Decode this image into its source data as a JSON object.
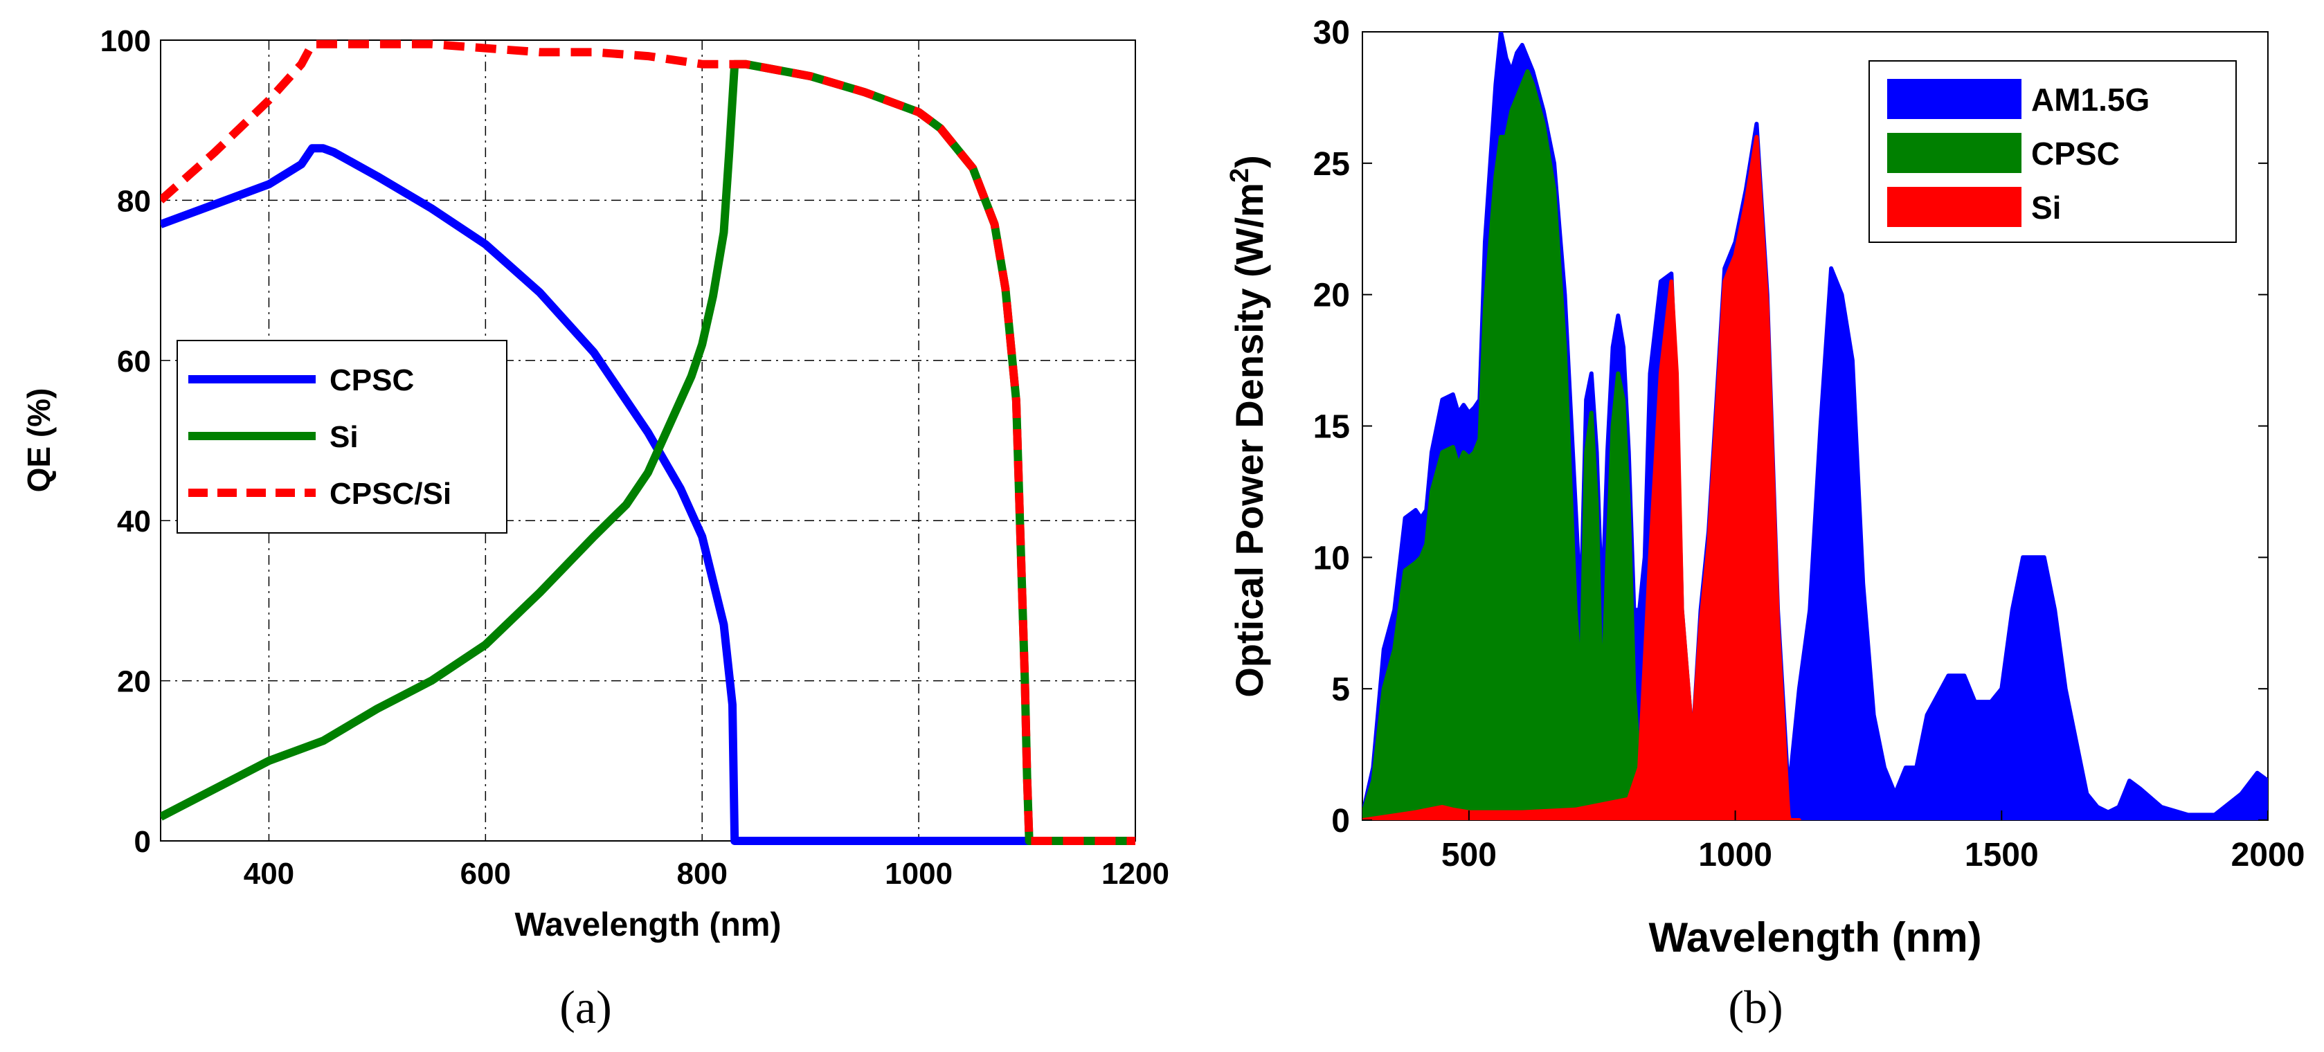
{
  "chart_data": [
    {
      "type": "line",
      "caption": "(a)",
      "xlabel": "Wavelength (nm)",
      "ylabel": "QE (%)",
      "xlim": [
        300,
        1200
      ],
      "ylim": [
        0,
        100
      ],
      "xticks": [
        400,
        600,
        800,
        1000,
        1200
      ],
      "yticks": [
        0,
        20,
        40,
        60,
        80,
        100
      ],
      "grid": true,
      "legend_position": "center-left",
      "series": [
        {
          "name": "CPSC",
          "color": "#0000ff",
          "style": "solid",
          "x": [
            300,
            350,
            400,
            430,
            440,
            450,
            460,
            500,
            550,
            600,
            650,
            700,
            750,
            780,
            800,
            820,
            828,
            830,
            1200
          ],
          "values": [
            77,
            79.5,
            82,
            84.5,
            86.5,
            86.5,
            86,
            83,
            79,
            74.5,
            68.5,
            61,
            51,
            44,
            38,
            27,
            17,
            0,
            0
          ]
        },
        {
          "name": "Si",
          "color": "#008000",
          "style": "solid",
          "x": [
            300,
            350,
            400,
            450,
            500,
            550,
            600,
            650,
            700,
            730,
            750,
            770,
            790,
            800,
            810,
            820,
            825,
            830,
            840,
            900,
            950,
            1000,
            1020,
            1050,
            1070,
            1080,
            1090,
            1098,
            1100,
            1102,
            1110,
            1200
          ],
          "values": [
            3,
            6.5,
            10,
            12.5,
            16.5,
            20,
            24.5,
            31,
            38,
            42,
            46,
            52,
            58,
            62,
            68,
            76,
            86,
            97,
            97,
            95.5,
            93.5,
            91,
            89,
            84,
            77,
            69,
            55,
            20,
            8,
            0,
            0,
            0
          ]
        },
        {
          "name": "CPSC/Si",
          "color": "#ff0000",
          "style": "dashed",
          "x": [
            300,
            350,
            400,
            430,
            440,
            450,
            500,
            550,
            600,
            650,
            700,
            750,
            800,
            840,
            900,
            950,
            1000,
            1020,
            1050,
            1070,
            1080,
            1090,
            1098,
            1100,
            1102,
            1110,
            1200
          ],
          "values": [
            80,
            86,
            92.5,
            97,
            99.5,
            99.5,
            99.5,
            99.5,
            99,
            98.5,
            98.5,
            98,
            97,
            97,
            95.5,
            93.5,
            91,
            89,
            84,
            77,
            69,
            55,
            20,
            8,
            0,
            0,
            0
          ]
        }
      ]
    },
    {
      "type": "area",
      "caption": "(b)",
      "xlabel": "Wavelength (nm)",
      "ylabel_main": "Optical Power Density (W/m",
      "ylabel_sup": "2",
      "ylabel_end": ")",
      "xlim": [
        300,
        2000
      ],
      "ylim": [
        0,
        30
      ],
      "xticks": [
        500,
        1000,
        1500,
        2000
      ],
      "yticks": [
        0,
        5,
        10,
        15,
        20,
        25,
        30
      ],
      "grid": false,
      "legend_position": "top-right",
      "series": [
        {
          "name": "AM1.5G",
          "color": "#0000ff",
          "x": [
            300,
            320,
            340,
            360,
            380,
            400,
            410,
            420,
            430,
            450,
            470,
            480,
            490,
            500,
            510,
            520,
            530,
            540,
            550,
            560,
            570,
            580,
            590,
            600,
            610,
            620,
            640,
            660,
            680,
            700,
            710,
            720,
            730,
            740,
            750,
            760,
            770,
            780,
            790,
            800,
            810,
            820,
            830,
            840,
            860,
            880,
            890,
            900,
            920,
            935,
            950,
            980,
            1000,
            1020,
            1040,
            1060,
            1080,
            1100,
            1120,
            1140,
            1160,
            1180,
            1200,
            1220,
            1240,
            1260,
            1280,
            1300,
            1320,
            1340,
            1360,
            1400,
            1430,
            1450,
            1480,
            1500,
            1520,
            1540,
            1560,
            1580,
            1600,
            1620,
            1640,
            1660,
            1680,
            1700,
            1720,
            1740,
            1760,
            1800,
            1850,
            1900,
            1950,
            1980,
            2000
          ],
          "values": [
            0.2,
            2,
            6.5,
            8,
            11.5,
            11.8,
            11.5,
            11.8,
            14,
            16,
            16.2,
            15.5,
            15.8,
            15.5,
            15.7,
            16,
            22,
            25,
            28,
            30,
            29,
            28.5,
            29.2,
            29.5,
            29,
            28.5,
            27,
            25,
            20,
            12,
            8,
            16,
            17,
            14,
            8,
            14,
            18,
            19.2,
            18,
            14,
            8,
            8,
            10,
            17,
            20.5,
            20.8,
            16,
            8,
            3,
            8,
            11,
            21,
            22,
            24,
            26.5,
            20,
            8,
            1,
            5,
            8,
            15,
            21,
            20,
            17.5,
            9,
            4,
            2,
            1,
            2,
            2,
            4,
            5.5,
            5.5,
            4.5,
            4.5,
            5,
            8,
            10,
            10,
            10,
            8,
            5,
            3,
            1,
            0.5,
            0.3,
            0.5,
            1.5,
            1.2,
            0.5,
            0.2,
            0.2,
            1,
            1.8,
            1.5
          ],
          "note": "y values are approximate readings"
        },
        {
          "name": "CPSC",
          "color": "#008000",
          "x": [
            300,
            320,
            340,
            360,
            380,
            400,
            410,
            420,
            430,
            450,
            470,
            480,
            490,
            500,
            510,
            520,
            530,
            540,
            550,
            560,
            570,
            580,
            590,
            600,
            610,
            620,
            640,
            660,
            680,
            700,
            710,
            720,
            730,
            740,
            750,
            760,
            770,
            780,
            790,
            800,
            810,
            820,
            828,
            830
          ],
          "values": [
            0.2,
            1.5,
            5,
            6.5,
            9.5,
            9.8,
            10,
            10.5,
            12.5,
            14,
            14.2,
            13.5,
            14,
            13.8,
            14,
            14.5,
            19.5,
            22,
            24.5,
            26,
            26,
            27,
            27.5,
            28,
            28.5,
            28,
            26.5,
            24,
            18,
            8,
            5,
            14,
            15.5,
            12,
            4,
            10,
            15,
            17,
            16,
            12,
            5,
            2,
            1,
            0
          ]
        },
        {
          "name": "Si",
          "color": "#ff0000",
          "x": [
            300,
            400,
            450,
            470,
            500,
            600,
            700,
            800,
            820,
            840,
            860,
            880,
            890,
            900,
            920,
            935,
            950,
            980,
            1000,
            1020,
            1040,
            1060,
            1080,
            1098,
            1100,
            1102,
            1120
          ],
          "values": [
            0,
            0.3,
            0.5,
            0.4,
            0.3,
            0.3,
            0.4,
            0.8,
            2,
            10,
            17,
            20.5,
            17,
            8,
            3,
            7.5,
            10.5,
            20.5,
            21.5,
            23.5,
            26,
            19.5,
            7.5,
            0.8,
            0.2,
            0,
            0
          ]
        }
      ]
    }
  ]
}
